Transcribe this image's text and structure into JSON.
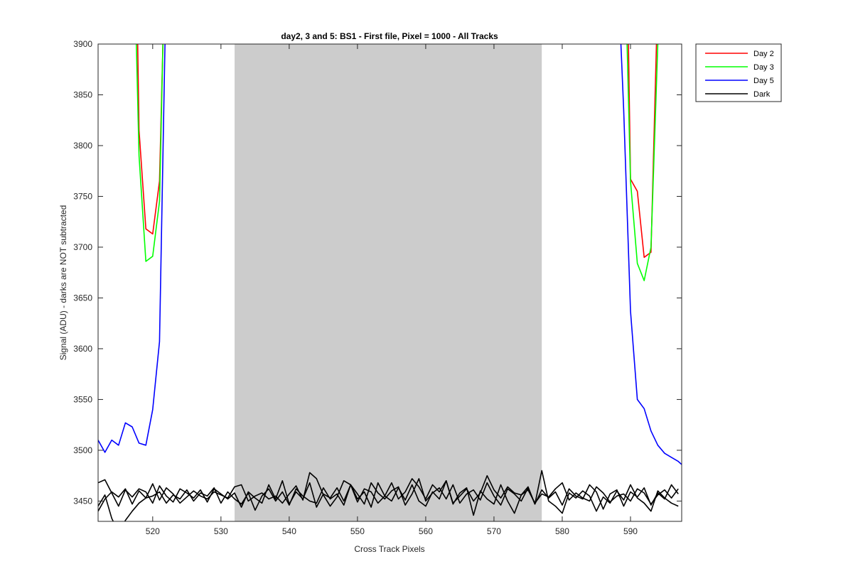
{
  "chart_data": {
    "type": "line",
    "title": "day2, 3 and 5: BS1 - First file, Pixel = 1000 - All Tracks",
    "xlabel": "Cross Track Pixels",
    "ylabel": "Signal (ADU) - darks are NOT subtracted",
    "xlim": [
      512,
      597.5
    ],
    "ylim": [
      3430,
      3900
    ],
    "xticks": [
      520,
      530,
      540,
      550,
      560,
      570,
      580,
      590
    ],
    "yticks": [
      3450,
      3500,
      3550,
      3600,
      3650,
      3700,
      3750,
      3800,
      3850,
      3900
    ],
    "grid": false,
    "legend_position": "outside-top-right",
    "shaded_region": {
      "x_start": 532,
      "x_end": 577,
      "color": "#cccccc"
    },
    "series": [
      {
        "name": "Day 2",
        "color": "#ff0000",
        "segments": [
          {
            "x": [
              517.8,
              518,
              519,
              520,
              521,
              521.5
            ],
            "y": [
              3900,
              3815,
              3718,
              3713,
              3765,
              3900
            ]
          },
          {
            "x": [
              589.7,
              590,
              591,
              592,
              593,
              593.8
            ],
            "y": [
              3900,
              3767,
              3755,
              3690,
              3695,
              3900
            ]
          }
        ]
      },
      {
        "name": "Day 3",
        "color": "#00ff00",
        "segments": [
          {
            "x": [
              517.6,
              518,
              519,
              520,
              521,
              521.5
            ],
            "y": [
              3900,
              3790,
              3686,
              3691,
              3745,
              3900
            ]
          },
          {
            "x": [
              589.5,
              590,
              591,
              592,
              593,
              594
            ],
            "y": [
              3900,
              3765,
              3684,
              3667,
              3700,
              3900
            ]
          }
        ]
      },
      {
        "name": "Day 5",
        "color": "#0000ff",
        "segments": [
          {
            "x": [
              512,
              513,
              514,
              515,
              516,
              517,
              518,
              519,
              520,
              521,
              521.8
            ],
            "y": [
              3510,
              3498,
              3510,
              3505,
              3527,
              3523,
              3507,
              3505,
              3540,
              3607,
              3900
            ]
          },
          {
            "x": [
              588.6,
              589,
              590,
              591,
              592,
              593,
              594,
              595,
              596,
              597,
              597.5
            ],
            "y": [
              3900,
              3835,
              3637,
              3550,
              3541,
              3519,
              3505,
              3497,
              3493,
              3489,
              3486
            ]
          }
        ]
      },
      {
        "name": "Dark",
        "color": "#000000",
        "segments": [
          {
            "x": [
              512,
              513,
              514,
              515,
              516,
              517,
              518,
              519,
              520,
              521,
              522,
              523,
              524,
              525,
              526,
              527,
              528,
              529,
              530,
              531,
              532,
              533,
              534,
              535,
              536,
              537,
              538,
              539,
              540,
              541,
              542,
              543,
              544,
              545,
              546,
              547,
              548,
              549,
              550,
              551,
              552,
              553,
              554,
              555,
              556,
              557,
              558,
              559,
              560,
              561,
              562,
              563,
              564,
              565,
              566,
              567,
              568,
              569,
              570,
              571,
              572,
              573,
              574,
              575,
              576,
              577,
              578,
              579,
              580,
              581,
              582,
              583,
              584,
              585,
              586,
              587,
              588,
              589,
              590,
              591,
              592,
              593,
              594,
              595,
              596,
              597
            ],
            "y": [
              3468,
              3471,
              3458,
              3445,
              3461,
              3454,
              3462,
              3459,
              3448,
              3465,
              3455,
              3449,
              3462,
              3458,
              3453,
              3461,
              3449,
              3462,
              3457,
              3452,
              3458,
              3444,
              3459,
              3453,
              3448,
              3466,
              3452,
              3470,
              3447,
              3459,
              3452,
              3468,
              3444,
              3457,
              3453,
              3463,
              3450,
              3466,
              3457,
              3447,
              3468,
              3458,
              3452,
              3460,
              3464,
              3446,
              3457,
              3472,
              3450,
              3458,
              3463,
              3452,
              3466,
              3448,
              3457,
              3461,
              3451,
              3468,
              3455,
              3446,
              3462,
              3457,
              3450,
              3463,
              3447,
              3461,
              3453,
              3459,
              3446,
              3462,
              3455,
              3452,
              3466,
              3459,
              3442,
              3457,
              3461,
              3445,
              3459,
              3454,
              3463,
              3446,
              3458,
              3452,
              3466,
              3457
            ]
          },
          {
            "x": [
              512,
              513,
              514,
              515,
              516,
              517,
              518,
              519,
              520,
              521,
              522,
              523,
              524,
              525,
              526,
              527,
              528,
              529,
              530,
              531,
              532,
              533,
              534,
              535,
              536,
              537,
              538,
              539,
              540,
              541,
              542,
              543,
              544,
              545,
              546,
              547,
              548,
              549,
              550,
              551,
              552,
              553,
              554,
              555,
              556,
              557,
              558,
              559,
              560,
              561,
              562,
              563,
              564,
              565,
              566,
              567,
              568,
              569,
              570,
              571,
              572,
              573,
              574,
              575,
              576,
              577,
              578,
              579,
              580,
              581,
              582,
              583,
              584,
              585,
              586,
              587,
              588,
              589,
              590,
              591,
              592,
              593,
              594,
              595,
              596,
              597
            ],
            "y": [
              3440,
              3452,
              3459,
              3454,
              3462,
              3447,
              3460,
              3453,
              3467,
              3451,
              3463,
              3457,
              3448,
              3454,
              3460,
              3455,
              3452,
              3459,
              3456,
              3453,
              3464,
              3466,
              3450,
              3455,
              3458,
              3452,
              3455,
              3448,
              3457,
              3465,
              3451,
              3478,
              3472,
              3456,
              3445,
              3454,
              3470,
              3466,
              3449,
              3462,
              3459,
              3448,
              3455,
              3468,
              3452,
              3459,
              3472,
              3464,
              3452,
              3466,
              3459,
              3470,
              3448,
              3455,
              3462,
              3450,
              3458,
              3475,
              3461,
              3453,
              3464,
              3458,
              3456,
              3461,
              3448,
              3457,
              3454,
              3462,
              3468,
              3451,
              3458,
              3453,
              3450,
              3464,
              3458,
              3449,
              3455,
              3457,
              3450,
              3462,
              3458,
              3447,
              3456,
              3461,
              3453,
              3462
            ]
          },
          {
            "x": [
              512,
              513,
              514,
              515,
              516,
              517,
              518,
              519,
              520,
              521,
              522,
              523,
              524,
              525,
              526,
              527,
              528,
              529,
              530,
              531,
              532,
              533,
              534,
              535,
              536,
              537,
              538,
              539,
              540,
              541,
              542,
              543,
              544,
              545,
              546,
              547,
              548,
              549,
              550,
              551,
              552,
              553,
              554,
              555,
              556,
              557,
              558,
              559,
              560,
              561,
              562,
              563,
              564,
              565,
              566,
              567,
              568,
              569,
              570,
              571,
              572,
              573,
              574,
              575,
              576,
              577,
              578,
              579,
              580,
              581,
              582,
              583,
              584,
              585,
              586,
              587,
              588,
              589,
              590,
              591,
              592,
              593,
              594,
              595,
              596,
              597
            ],
            "y": [
              3445,
              3456,
              3433,
              3419,
              3431,
              3440,
              3448,
              3453,
              3455,
              3459,
              3448,
              3456,
              3452,
              3461,
              3450,
              3458,
              3455,
              3463,
              3448,
              3459,
              3452,
              3447,
              3458,
              3441,
              3455,
              3462,
              3450,
              3459,
              3446,
              3462,
              3455,
              3450,
              3448,
              3463,
              3452,
              3457,
              3446,
              3466,
              3452,
              3459,
              3444,
              3468,
              3455,
              3450,
              3463,
              3451,
              3466,
              3450,
              3445,
              3459,
              3452,
              3470,
              3447,
              3458,
              3463,
              3436,
              3460,
              3452,
              3447,
              3466,
              3450,
              3438,
              3456,
              3464,
              3447,
              3480,
              3450,
              3445,
              3438,
              3458,
              3453,
              3460,
              3455,
              3440,
              3454,
              3448,
              3460,
              3451,
              3466,
              3453,
              3448,
              3440,
              3460,
              3453,
              3448,
              3445
            ]
          }
        ]
      }
    ]
  }
}
